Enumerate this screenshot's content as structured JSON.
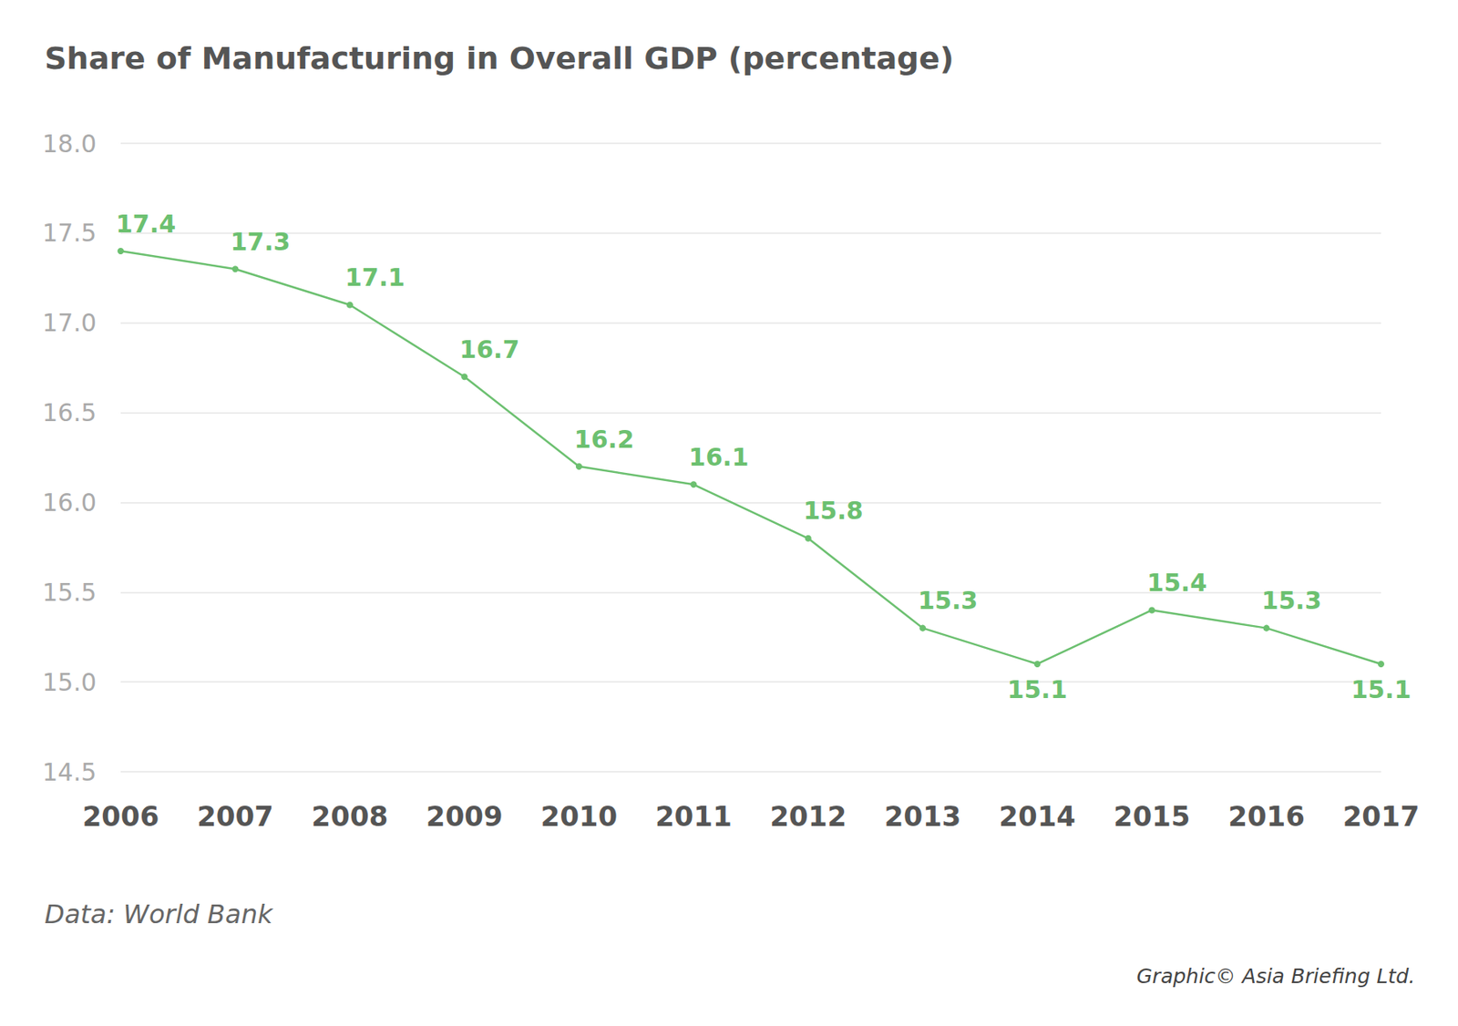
{
  "chart_data": {
    "type": "line",
    "title": "Share of Manufacturing in Overall GDP (percentage)",
    "source": "Data: World Bank",
    "credit": "Graphic© Asia Briefing Ltd.",
    "categories": [
      "2006",
      "2007",
      "2008",
      "2009",
      "2010",
      "2011",
      "2012",
      "2013",
      "2014",
      "2015",
      "2016",
      "2017"
    ],
    "values": [
      17.4,
      17.3,
      17.1,
      16.7,
      16.2,
      16.1,
      15.8,
      15.3,
      15.1,
      15.4,
      15.3,
      15.1
    ],
    "color": "#6cc070",
    "marker": "circle",
    "ylim": [
      14.5,
      18
    ],
    "yticks": [
      14.5,
      {
        "value": 15,
        "label": "15.0"
      },
      15.5,
      {
        "value": 16,
        "label": "16.0"
      },
      16.5,
      {
        "value": 17,
        "label": "17.0"
      },
      17.5,
      {
        "value": 18,
        "label": "18.0"
      }
    ],
    "grid": true,
    "data_labels": true
  }
}
